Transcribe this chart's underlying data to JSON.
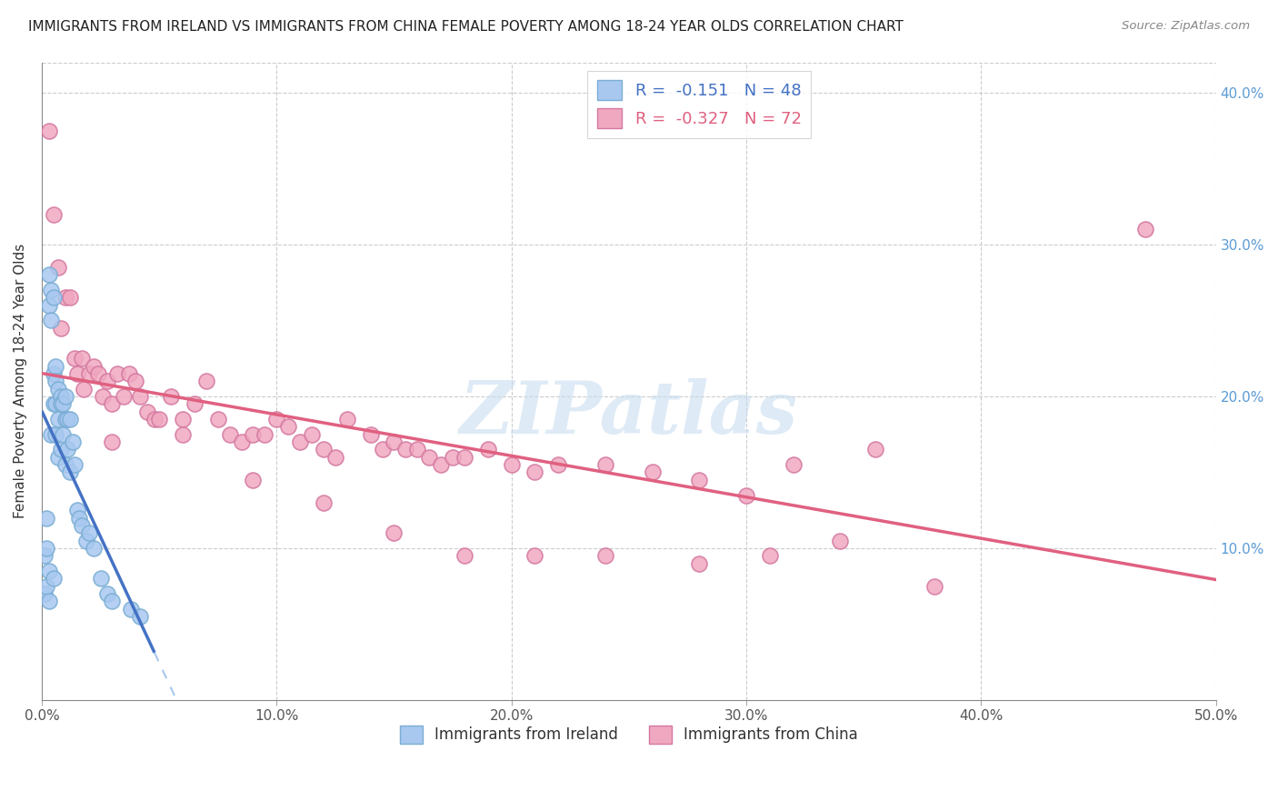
{
  "title": "IMMIGRANTS FROM IRELAND VS IMMIGRANTS FROM CHINA FEMALE POVERTY AMONG 18-24 YEAR OLDS CORRELATION CHART",
  "source": "Source: ZipAtlas.com",
  "ylabel": "Female Poverty Among 18-24 Year Olds",
  "xlim": [
    0,
    0.5
  ],
  "ylim": [
    0,
    0.42
  ],
  "ireland_color": "#a8c8f0",
  "ireland_edge_color": "#7baed4",
  "china_color": "#f0a8c0",
  "china_edge_color": "#d478a0",
  "ireland_line_color": "#4472c4",
  "ireland_dash_color": "#a8c8f0",
  "china_line_color": "#e06080",
  "ireland_R": -0.151,
  "ireland_N": 48,
  "china_R": -0.327,
  "china_N": 72,
  "watermark": "ZIPatlas",
  "watermark_color": "#c8ddf0",
  "ireland_scatter_x": [
    0.001,
    0.001,
    0.002,
    0.002,
    0.002,
    0.003,
    0.003,
    0.003,
    0.003,
    0.004,
    0.004,
    0.004,
    0.005,
    0.005,
    0.005,
    0.005,
    0.006,
    0.006,
    0.006,
    0.006,
    0.007,
    0.007,
    0.007,
    0.008,
    0.008,
    0.008,
    0.009,
    0.009,
    0.01,
    0.01,
    0.01,
    0.011,
    0.011,
    0.012,
    0.012,
    0.013,
    0.014,
    0.015,
    0.016,
    0.017,
    0.019,
    0.02,
    0.022,
    0.025,
    0.028,
    0.03,
    0.038,
    0.042
  ],
  "ireland_scatter_y": [
    0.095,
    0.07,
    0.12,
    0.1,
    0.075,
    0.28,
    0.26,
    0.085,
    0.065,
    0.27,
    0.25,
    0.175,
    0.265,
    0.215,
    0.195,
    0.08,
    0.22,
    0.21,
    0.195,
    0.175,
    0.205,
    0.185,
    0.16,
    0.2,
    0.195,
    0.165,
    0.195,
    0.175,
    0.2,
    0.185,
    0.155,
    0.185,
    0.165,
    0.185,
    0.15,
    0.17,
    0.155,
    0.125,
    0.12,
    0.115,
    0.105,
    0.11,
    0.1,
    0.08,
    0.07,
    0.065,
    0.06,
    0.055
  ],
  "china_scatter_x": [
    0.003,
    0.005,
    0.007,
    0.008,
    0.01,
    0.012,
    0.014,
    0.015,
    0.017,
    0.018,
    0.02,
    0.022,
    0.024,
    0.026,
    0.028,
    0.03,
    0.032,
    0.035,
    0.037,
    0.04,
    0.042,
    0.045,
    0.048,
    0.05,
    0.055,
    0.06,
    0.065,
    0.07,
    0.075,
    0.08,
    0.085,
    0.09,
    0.095,
    0.1,
    0.105,
    0.11,
    0.115,
    0.12,
    0.125,
    0.13,
    0.14,
    0.145,
    0.15,
    0.155,
    0.16,
    0.165,
    0.17,
    0.175,
    0.18,
    0.19,
    0.2,
    0.21,
    0.22,
    0.24,
    0.26,
    0.28,
    0.3,
    0.32,
    0.34,
    0.355,
    0.03,
    0.06,
    0.09,
    0.12,
    0.15,
    0.18,
    0.21,
    0.24,
    0.28,
    0.31,
    0.38,
    0.47
  ],
  "china_scatter_y": [
    0.375,
    0.32,
    0.285,
    0.245,
    0.265,
    0.265,
    0.225,
    0.215,
    0.225,
    0.205,
    0.215,
    0.22,
    0.215,
    0.2,
    0.21,
    0.195,
    0.215,
    0.2,
    0.215,
    0.21,
    0.2,
    0.19,
    0.185,
    0.185,
    0.2,
    0.185,
    0.195,
    0.21,
    0.185,
    0.175,
    0.17,
    0.175,
    0.175,
    0.185,
    0.18,
    0.17,
    0.175,
    0.165,
    0.16,
    0.185,
    0.175,
    0.165,
    0.17,
    0.165,
    0.165,
    0.16,
    0.155,
    0.16,
    0.16,
    0.165,
    0.155,
    0.15,
    0.155,
    0.155,
    0.15,
    0.145,
    0.135,
    0.155,
    0.105,
    0.165,
    0.17,
    0.175,
    0.145,
    0.13,
    0.11,
    0.095,
    0.095,
    0.095,
    0.09,
    0.095,
    0.075,
    0.31
  ]
}
